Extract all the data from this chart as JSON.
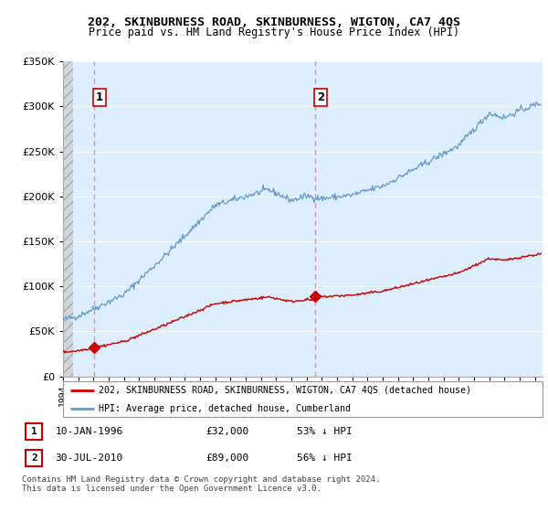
{
  "title": "202, SKINBURNESS ROAD, SKINBURNESS, WIGTON, CA7 4QS",
  "subtitle": "Price paid vs. HM Land Registry's House Price Index (HPI)",
  "red_label": "202, SKINBURNESS ROAD, SKINBURNESS, WIGTON, CA7 4QS (detached house)",
  "blue_label": "HPI: Average price, detached house, Cumberland",
  "annotation1_date": "10-JAN-1996",
  "annotation1_price": "£32,000",
  "annotation1_pct": "53% ↓ HPI",
  "annotation2_date": "30-JUL-2010",
  "annotation2_price": "£89,000",
  "annotation2_pct": "56% ↓ HPI",
  "footnote": "Contains HM Land Registry data © Crown copyright and database right 2024.\nThis data is licensed under the Open Government Licence v3.0.",
  "ylim": [
    0,
    350000
  ],
  "yticks": [
    0,
    50000,
    100000,
    150000,
    200000,
    250000,
    300000,
    350000
  ],
  "xlim_start": 1994.0,
  "xlim_end": 2025.5,
  "sale1_x": 1996.03,
  "sale1_y": 32000,
  "sale2_x": 2010.58,
  "sale2_y": 89000,
  "vline1_x": 1996.03,
  "vline2_x": 2010.58,
  "background_color": "#ffffff",
  "chart_bg_color": "#ddeeff",
  "hatch_color": "#c8c8c8",
  "red_color": "#cc0000",
  "blue_color": "#6699cc",
  "vline_color": "#ff8888",
  "grid_color": "#ffffff",
  "annotation_box_color": "#cc0000"
}
